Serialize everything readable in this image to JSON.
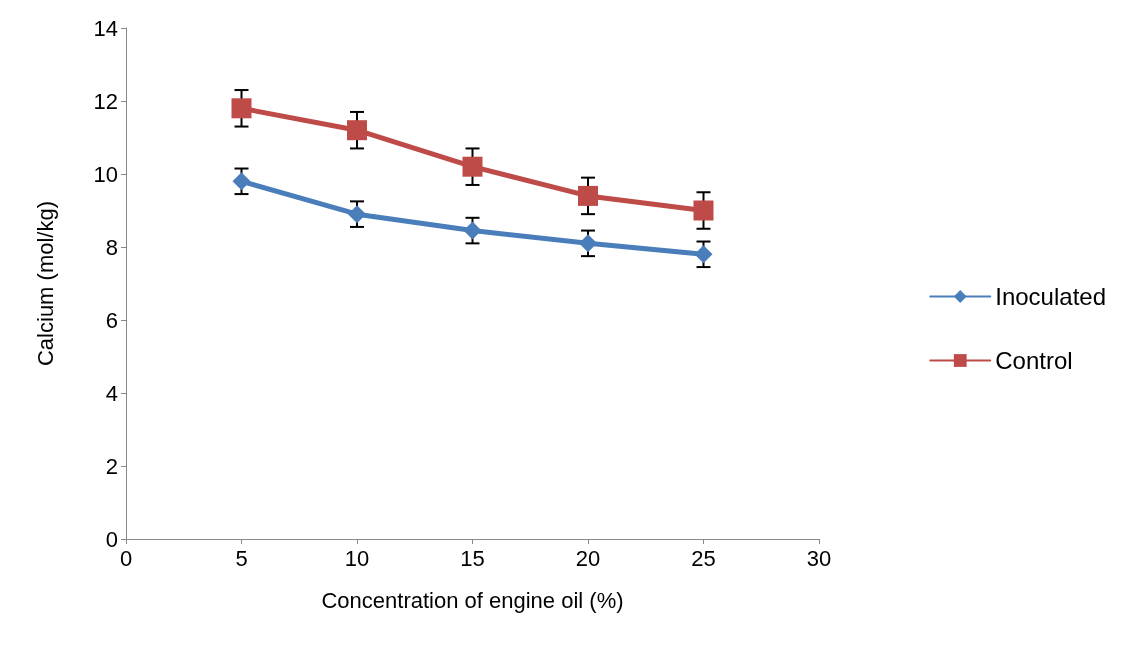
{
  "chart_data": {
    "type": "line",
    "xlabel": "Concentration of engine oil (%)",
    "ylabel": "Calcium (mol/kg)",
    "x": [
      5,
      10,
      15,
      20,
      25
    ],
    "xlim": [
      0,
      30
    ],
    "xticks": [
      0,
      5,
      10,
      15,
      20,
      25,
      30
    ],
    "ylim": [
      0,
      14
    ],
    "yticks": [
      0,
      2,
      4,
      6,
      8,
      10,
      12,
      14
    ],
    "grid": false,
    "legend": "right",
    "line_style": "solid",
    "series": [
      {
        "name": "Inoculated",
        "color": "#4a7ebb",
        "marker": "diamond",
        "values": [
          9.8,
          8.9,
          8.45,
          8.1,
          7.8
        ],
        "errors": [
          0.35,
          0.35,
          0.35,
          0.35,
          0.35
        ]
      },
      {
        "name": "Control",
        "color": "#be4b48",
        "marker": "square",
        "values": [
          11.8,
          11.2,
          10.2,
          9.4,
          9.0
        ],
        "errors": [
          0.5,
          0.5,
          0.5,
          0.5,
          0.5
        ]
      }
    ]
  }
}
